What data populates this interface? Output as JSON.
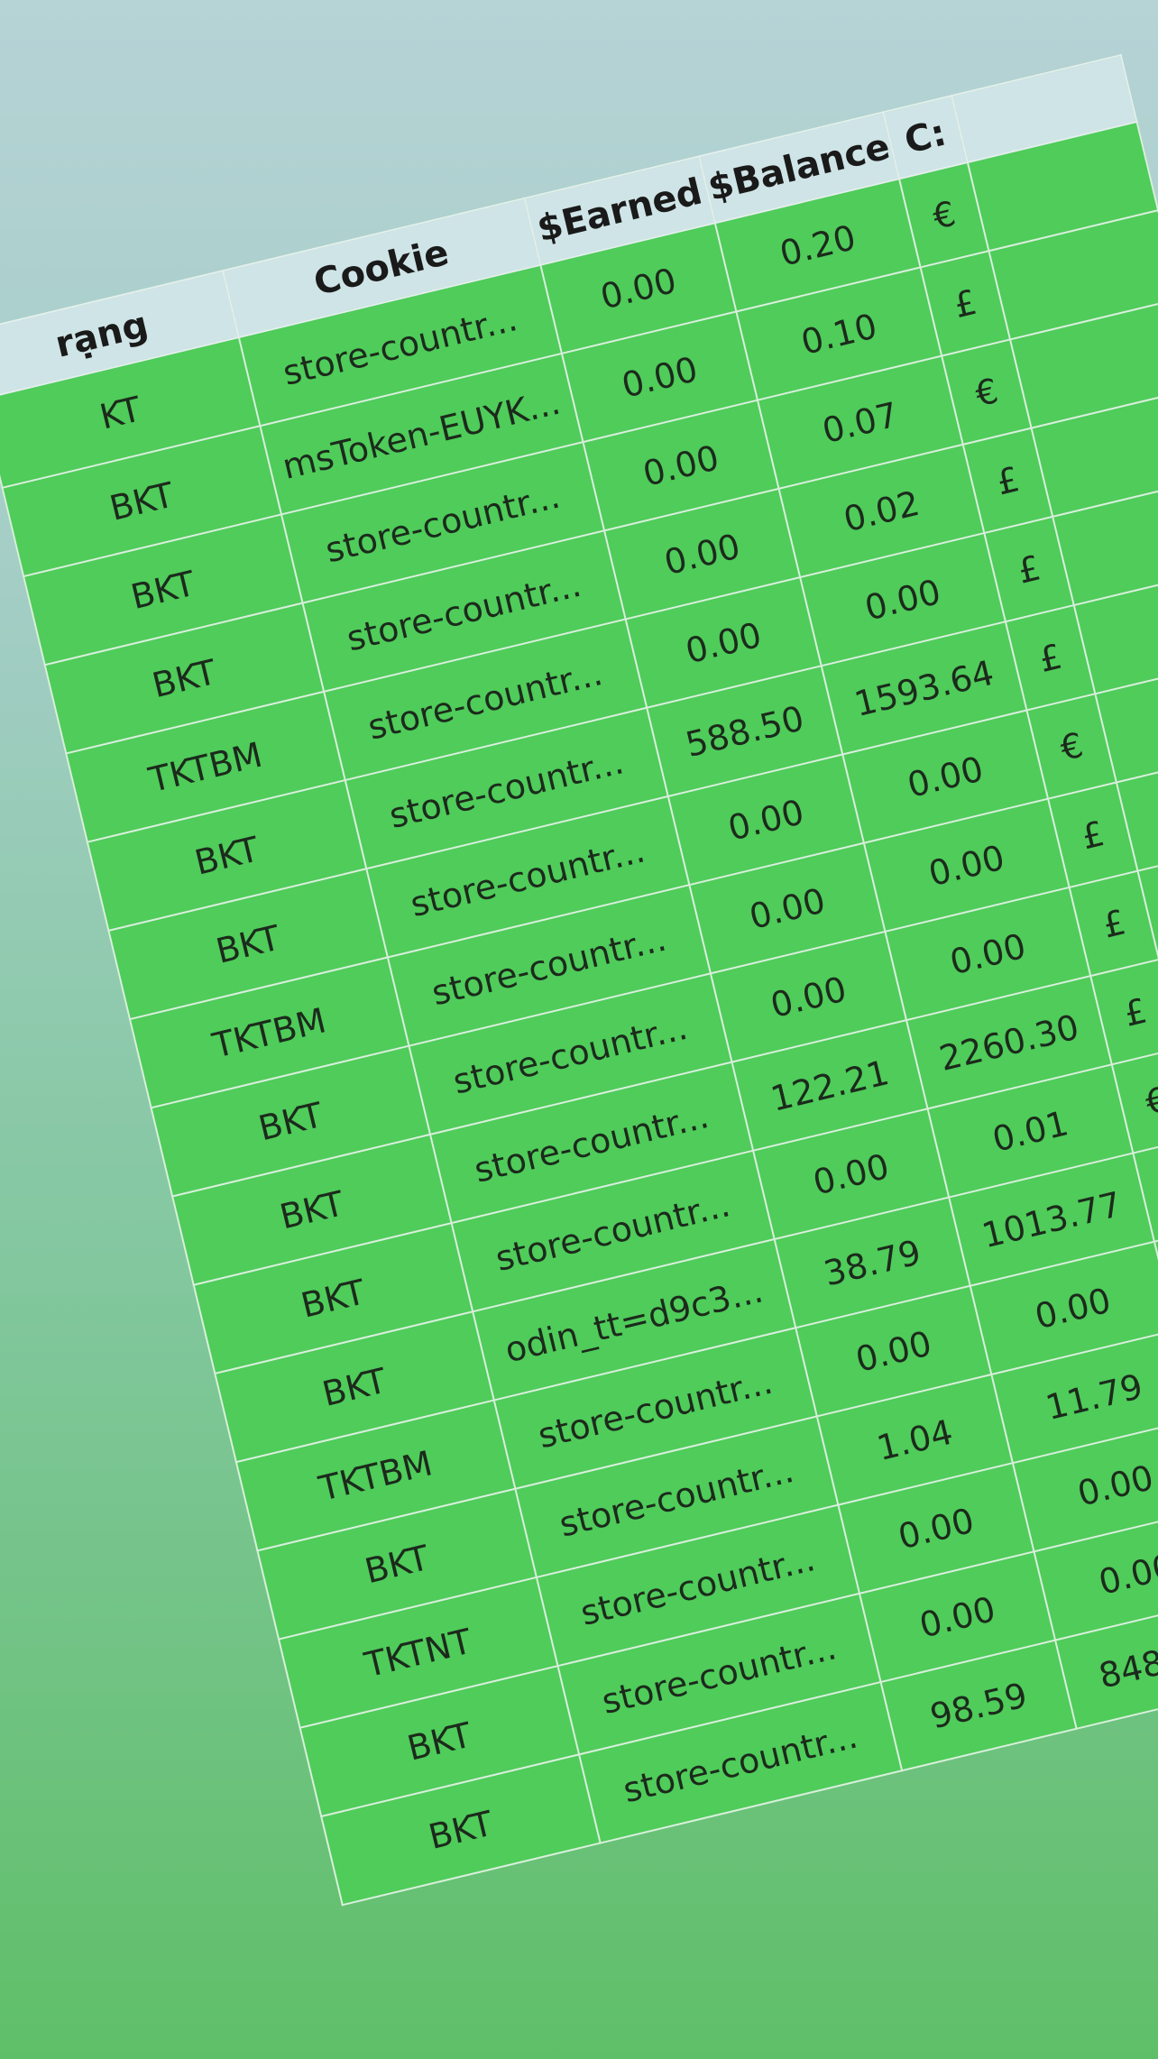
{
  "table": {
    "headers": {
      "status": "rạng",
      "cookie": "Cookie",
      "earned": "$Earned",
      "balance": "$Balance",
      "currency": "C:"
    },
    "rows": [
      {
        "status": "KT",
        "cookie": "store-countr...",
        "earned": "0.00",
        "balance": "0.20",
        "currency": "€"
      },
      {
        "status": "BKT",
        "cookie": "msToken-EUYK...",
        "earned": "0.00",
        "balance": "0.10",
        "currency": "£"
      },
      {
        "status": "BKT",
        "cookie": "store-countr...",
        "earned": "0.00",
        "balance": "0.07",
        "currency": "€"
      },
      {
        "status": "BKT",
        "cookie": "store-countr...",
        "earned": "0.00",
        "balance": "0.02",
        "currency": "£"
      },
      {
        "status": "TKTBM",
        "cookie": "store-countr...",
        "earned": "0.00",
        "balance": "0.00",
        "currency": "£"
      },
      {
        "status": "BKT",
        "cookie": "store-countr...",
        "earned": "588.50",
        "balance": "1593.64",
        "currency": "£"
      },
      {
        "status": "BKT",
        "cookie": "store-countr...",
        "earned": "0.00",
        "balance": "0.00",
        "currency": "€"
      },
      {
        "status": "TKTBM",
        "cookie": "store-countr...",
        "earned": "0.00",
        "balance": "0.00",
        "currency": "£"
      },
      {
        "status": "BKT",
        "cookie": "store-countr...",
        "earned": "0.00",
        "balance": "0.00",
        "currency": "£"
      },
      {
        "status": "BKT",
        "cookie": "store-countr...",
        "earned": "122.21",
        "balance": "2260.30",
        "currency": "£"
      },
      {
        "status": "BKT",
        "cookie": "store-countr...",
        "earned": "0.00",
        "balance": "0.01",
        "currency": "€"
      },
      {
        "status": "BKT",
        "cookie": "odin_tt=d9c3...",
        "earned": "38.79",
        "balance": "1013.77",
        "currency": "£"
      },
      {
        "status": "TKTBM",
        "cookie": "store-countr...",
        "earned": "0.00",
        "balance": "0.00",
        "currency": "£"
      },
      {
        "status": "BKT",
        "cookie": "store-countr...",
        "earned": "1.04",
        "balance": "11.79",
        "currency": "£"
      },
      {
        "status": "TKTNT",
        "cookie": "store-countr...",
        "earned": "0.00",
        "balance": "0.00",
        "currency": "£"
      },
      {
        "status": "BKT",
        "cookie": "store-countr...",
        "earned": "0.00",
        "balance": "0.00",
        "currency": "£"
      },
      {
        "status": "BKT",
        "cookie": "store-countr...",
        "earned": "98.59",
        "balance": "848.72",
        "currency": "£"
      }
    ]
  }
}
